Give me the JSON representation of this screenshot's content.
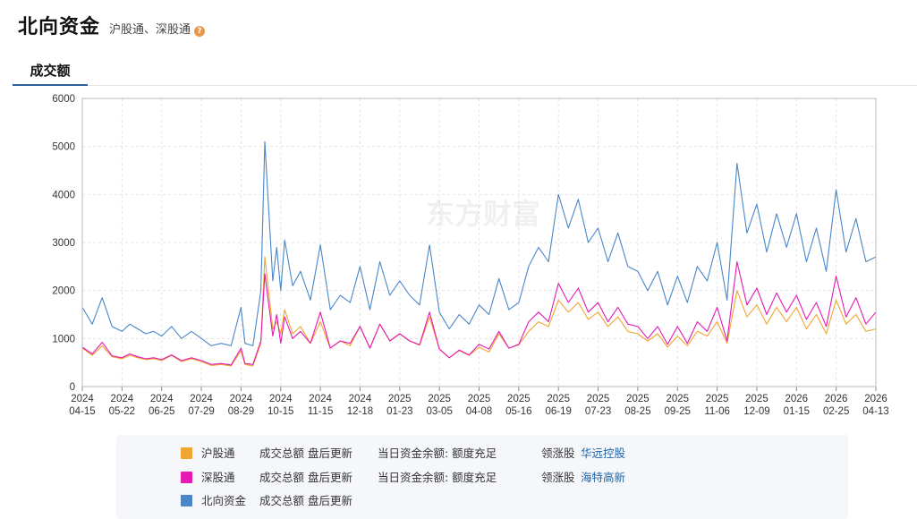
{
  "header": {
    "title": "北向资金",
    "subtitle": "沪股通、深股通",
    "help": "?"
  },
  "tabs": {
    "active": "成交额"
  },
  "watermark": "东方财富",
  "colors": {
    "sh": "#f0a530",
    "sz": "#e619b4",
    "north": "#4a86c8",
    "grid": "#e4e4e4",
    "axis": "#888888"
  },
  "legend": [
    {
      "name": "沪股通",
      "desc": "成交总额 盘后更新",
      "balance": "当日资金余额: 额度充足",
      "leader_label": "领涨股",
      "leader": "华远控股",
      "color": "#f0a530"
    },
    {
      "name": "深股通",
      "desc": "成交总额 盘后更新",
      "balance": "当日资金余额: 额度充足",
      "leader_label": "领涨股",
      "leader": "海特高新",
      "color": "#e619b4"
    },
    {
      "name": "北向资金",
      "desc": "成交总额 盘后更新",
      "color": "#4a86c8"
    }
  ],
  "chart_data": {
    "type": "line",
    "ylim": [
      0,
      6000
    ],
    "yticks": [
      0,
      1000,
      2000,
      3000,
      4000,
      5000,
      6000
    ],
    "xticks": [
      [
        "2024",
        "04-15"
      ],
      [
        "2024",
        "05-22"
      ],
      [
        "2024",
        "06-25"
      ],
      [
        "2024",
        "07-29"
      ],
      [
        "2024",
        "08-29"
      ],
      [
        "2024",
        "10-15"
      ],
      [
        "2024",
        "11-15"
      ],
      [
        "2024",
        "12-18"
      ],
      [
        "2025",
        "01-23"
      ],
      [
        "2025",
        "03-05"
      ],
      [
        "2025",
        "04-08"
      ],
      [
        "2025",
        "05-16"
      ],
      [
        "2025",
        "06-19"
      ],
      [
        "2025",
        "07-23"
      ],
      [
        "2025",
        "08-25"
      ],
      [
        "2025",
        "09-25"
      ],
      [
        "2025",
        "11-06"
      ],
      [
        "2025",
        "12-09"
      ],
      [
        "2026",
        "01-15"
      ],
      [
        "2026",
        "02-25"
      ],
      [
        "2026",
        "04-13"
      ]
    ],
    "x": [
      0,
      0.25,
      0.5,
      0.75,
      1,
      1.2,
      1.4,
      1.6,
      1.8,
      2,
      2.25,
      2.5,
      2.75,
      3,
      3.25,
      3.5,
      3.75,
      4,
      4.1,
      4.3,
      4.5,
      4.6,
      4.8,
      4.9,
      5,
      5.1,
      5.3,
      5.5,
      5.75,
      6,
      6.25,
      6.5,
      6.75,
      7,
      7.25,
      7.5,
      7.75,
      8,
      8.25,
      8.5,
      8.75,
      9,
      9.25,
      9.5,
      9.75,
      10,
      10.25,
      10.5,
      10.75,
      11,
      11.25,
      11.5,
      11.75,
      12,
      12.25,
      12.5,
      12.75,
      13,
      13.25,
      13.5,
      13.75,
      14,
      14.25,
      14.5,
      14.75,
      15,
      15.25,
      15.5,
      15.75,
      16,
      16.25,
      16.5,
      16.75,
      17,
      17.25,
      17.5,
      17.75,
      18,
      18.25,
      18.5,
      18.75,
      19,
      19.25,
      19.5,
      19.75,
      20
    ],
    "series": [
      {
        "name": "北向资金",
        "color": "#4a86c8",
        "values": [
          1650,
          1300,
          1850,
          1250,
          1150,
          1300,
          1200,
          1100,
          1150,
          1050,
          1250,
          1000,
          1150,
          1000,
          850,
          900,
          850,
          1650,
          900,
          850,
          2000,
          5100,
          2200,
          2900,
          2000,
          3050,
          2100,
          2400,
          1800,
          2950,
          1600,
          1900,
          1750,
          2500,
          1600,
          2600,
          1900,
          2200,
          1900,
          1700,
          2950,
          1550,
          1200,
          1500,
          1300,
          1700,
          1500,
          2250,
          1600,
          1750,
          2500,
          2900,
          2600,
          4000,
          3300,
          3900,
          3000,
          3300,
          2600,
          3200,
          2500,
          2400,
          2000,
          2400,
          1700,
          2300,
          1750,
          2500,
          2200,
          3000,
          1800,
          4650,
          3200,
          3800,
          2800,
          3600,
          2900,
          3600,
          2600,
          3300,
          2400,
          4100,
          2800,
          3500,
          2600,
          2700
        ]
      },
      {
        "name": "沪股通",
        "color": "#f0a530",
        "values": [
          800,
          650,
          850,
          620,
          580,
          650,
          600,
          560,
          580,
          540,
          650,
          520,
          580,
          520,
          440,
          460,
          430,
          750,
          460,
          430,
          900,
          2700,
          1200,
          1350,
          1100,
          1600,
          1100,
          1250,
          900,
          1350,
          800,
          950,
          850,
          1250,
          800,
          1300,
          950,
          1100,
          950,
          860,
          1450,
          780,
          600,
          750,
          650,
          820,
          720,
          1100,
          800,
          870,
          1150,
          1350,
          1250,
          1800,
          1550,
          1750,
          1400,
          1550,
          1250,
          1450,
          1150,
          1100,
          950,
          1100,
          820,
          1050,
          850,
          1150,
          1050,
          1350,
          900,
          2000,
          1450,
          1700,
          1300,
          1650,
          1350,
          1650,
          1200,
          1500,
          1100,
          1800,
          1300,
          1500,
          1150,
          1200
        ]
      },
      {
        "name": "深股通",
        "color": "#e619b4",
        "values": [
          820,
          680,
          920,
          640,
          600,
          680,
          620,
          580,
          600,
          560,
          660,
          540,
          600,
          540,
          460,
          480,
          450,
          800,
          480,
          460,
          950,
          2350,
          1050,
          1500,
          900,
          1450,
          1000,
          1150,
          900,
          1550,
          800,
          950,
          900,
          1250,
          800,
          1300,
          950,
          1100,
          950,
          870,
          1550,
          780,
          600,
          760,
          660,
          880,
          780,
          1150,
          800,
          880,
          1350,
          1550,
          1350,
          2150,
          1750,
          2050,
          1550,
          1750,
          1350,
          1650,
          1300,
          1250,
          1000,
          1250,
          880,
          1250,
          900,
          1350,
          1150,
          1650,
          950,
          2600,
          1700,
          2050,
          1500,
          1950,
          1550,
          1900,
          1400,
          1750,
          1250,
          2300,
          1450,
          1850,
          1300,
          1550
        ]
      }
    ]
  }
}
